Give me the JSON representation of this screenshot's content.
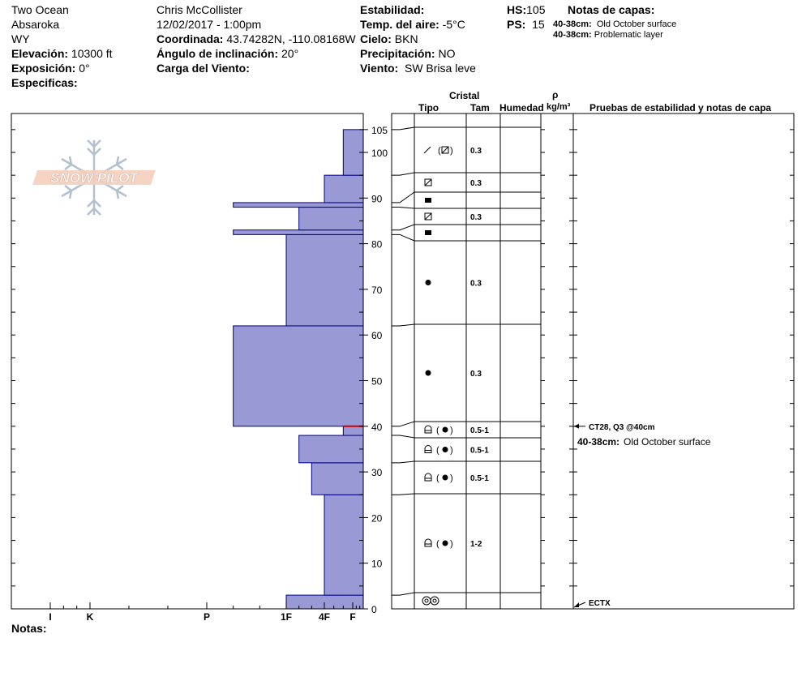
{
  "header": {
    "location": "Two Ocean",
    "range": "Absaroka",
    "state": "WY",
    "elevation_label": "Elevación:",
    "elevation_value": "10300 ft",
    "aspect_label": "Exposición:",
    "aspect_value": "0°",
    "specifics_label": "Especificas:",
    "observer": "Chris McCollister",
    "datetime": "12/02/2017 - 1:00pm",
    "coord_label": "Coordinada:",
    "coord_value": "43.74282N, -110.08168W",
    "slope_label": "Ángulo de inclinación:",
    "slope_value": "20°",
    "wind_load_label": "Carga del Viento:",
    "stability_label": "Estabilidad:",
    "air_temp_label": "Temp. del aire:",
    "air_temp_value": "-5°C",
    "sky_label": "Cielo:",
    "sky_value": "BKN",
    "precip_label": "Precipitación:",
    "precip_value": "NO",
    "wind_label": "Viento:",
    "wind_value": "SW Brisa leve",
    "hs_label": "HS:",
    "hs_value": "105",
    "ps_label": "PS:",
    "ps_value": "15",
    "layer_notes_label": "Notas de capas:",
    "layer_notes": [
      {
        "range": "40-38cm:",
        "text": "Old October surface"
      },
      {
        "range": "40-38cm:",
        "text": "Problematic layer"
      }
    ]
  },
  "columns": {
    "crystal": "Cristal",
    "type": "Tipo",
    "size": "Tam",
    "moisture": "Humedad",
    "rho": "ρ",
    "density_unit": "kg/m³",
    "tests": "Pruebas de estabilidad y notas de capa"
  },
  "notes_label": "Notas:",
  "logo_text": "SNOW PILOT",
  "colors": {
    "fill": "#9999d6",
    "stroke": "#000080",
    "weak": "#cc0000"
  },
  "chart_data": {
    "type": "bar",
    "orientation": "horizontal",
    "yaxis": {
      "label": "",
      "range": [
        0,
        105
      ],
      "ticks": [
        0,
        10,
        20,
        30,
        40,
        50,
        60,
        70,
        80,
        90,
        100,
        105
      ]
    },
    "xaxis": {
      "label": "",
      "categories": [
        "I",
        "K",
        "P",
        "1F",
        "4F",
        "F"
      ],
      "reversed": true
    },
    "hardness_layers": [
      {
        "bottom": 0,
        "top": 3,
        "hardness": "1F"
      },
      {
        "bottom": 3,
        "top": 25,
        "hardness": "4F"
      },
      {
        "bottom": 25,
        "top": 32,
        "hardness": "4F+"
      },
      {
        "bottom": 32,
        "top": 38,
        "hardness": "1F-"
      },
      {
        "bottom": 38,
        "top": 40,
        "hardness": "F+"
      },
      {
        "bottom": 40,
        "top": 62,
        "hardness": "P-"
      },
      {
        "bottom": 62,
        "top": 82,
        "hardness": "1F"
      },
      {
        "bottom": 82,
        "top": 83,
        "hardness": "P-"
      },
      {
        "bottom": 83,
        "top": 88,
        "hardness": "1F-"
      },
      {
        "bottom": 88,
        "top": 89,
        "hardness": "P-"
      },
      {
        "bottom": 89,
        "top": 95,
        "hardness": "4F"
      },
      {
        "bottom": 95,
        "top": 105,
        "hardness": "F+"
      }
    ],
    "layers": [
      {
        "bottom": 95,
        "top": 105,
        "grain": "slash-facet",
        "size": "0.3"
      },
      {
        "bottom": 89,
        "top": 95,
        "grain": "facet",
        "size": "0.3"
      },
      {
        "bottom": 88,
        "top": 89,
        "grain": "crust",
        "size": ""
      },
      {
        "bottom": 83,
        "top": 88,
        "grain": "facet",
        "size": "0.3"
      },
      {
        "bottom": 82,
        "top": 83,
        "grain": "crust",
        "size": ""
      },
      {
        "bottom": 62,
        "top": 82,
        "grain": "round",
        "size": "0.3"
      },
      {
        "bottom": 40,
        "top": 62,
        "grain": "round",
        "size": "0.3"
      },
      {
        "bottom": 38,
        "top": 40,
        "grain": "cup-round",
        "size": "0.5-1"
      },
      {
        "bottom": 32,
        "top": 38,
        "grain": "cup-round",
        "size": "0.5-1"
      },
      {
        "bottom": 25,
        "top": 32,
        "grain": "cup-round",
        "size": "0.5-1"
      },
      {
        "bottom": 3,
        "top": 25,
        "grain": "cup-round",
        "size": "1-2"
      },
      {
        "bottom": 0,
        "top": 3,
        "grain": "melt",
        "size": ""
      }
    ],
    "weak_layer_depth": 40,
    "tests": [
      {
        "depth": 40,
        "label": "CT28, Q3 @40cm"
      },
      {
        "depth": 0,
        "label": "ECTX"
      }
    ],
    "layer_note_annotation": {
      "range": "40-38cm:",
      "text": "Old October surface"
    }
  }
}
